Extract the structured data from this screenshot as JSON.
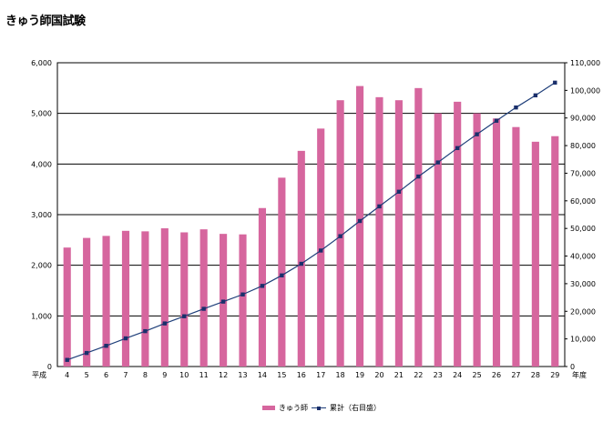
{
  "page_title": "きゅう師国試験",
  "chart_data": {
    "type": "bar+line",
    "categories": [
      "4",
      "5",
      "6",
      "7",
      "8",
      "9",
      "10",
      "11",
      "12",
      "13",
      "14",
      "15",
      "16",
      "17",
      "18",
      "19",
      "20",
      "21",
      "22",
      "23",
      "24",
      "25",
      "26",
      "27",
      "28",
      "29"
    ],
    "x_prefix_label": "平成",
    "x_suffix_label": "年度",
    "series": [
      {
        "name": "きゅう師",
        "type": "bar",
        "axis": "left",
        "color": "#d6669e",
        "values": [
          2350,
          2540,
          2580,
          2680,
          2670,
          2730,
          2650,
          2710,
          2620,
          2610,
          3130,
          3730,
          4260,
          4700,
          5260,
          5540,
          5320,
          5260,
          5500,
          5000,
          5230,
          5000,
          4900,
          4730,
          4440,
          4550
        ]
      },
      {
        "name": "累計（右目盛）",
        "type": "line",
        "axis": "right",
        "color": "#1f3f7a",
        "values": [
          2400,
          4900,
          7500,
          10200,
          12800,
          15600,
          18200,
          20900,
          23500,
          26100,
          29200,
          33000,
          37200,
          42000,
          47200,
          52700,
          58000,
          63300,
          68800,
          73900,
          79100,
          84100,
          89000,
          93800,
          98200,
          102800
        ]
      }
    ],
    "y_left": {
      "min": 0,
      "max": 6000,
      "step": 1000,
      "tick_labels": [
        "0",
        "1,000",
        "2,000",
        "3,000",
        "4,000",
        "5,000",
        "6,000"
      ]
    },
    "y_right": {
      "min": 0,
      "max": 110000,
      "step": 10000,
      "tick_labels": [
        "0",
        "10,000",
        "20,000",
        "30,000",
        "40,000",
        "50,000",
        "60,000",
        "70,000",
        "80,000",
        "90,000",
        "100,000",
        "110,000"
      ]
    },
    "grid": true,
    "legend_position": "bottom"
  }
}
